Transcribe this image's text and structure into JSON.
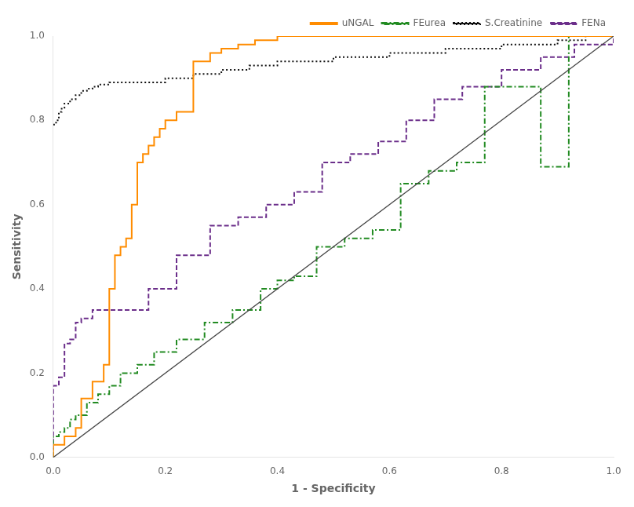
{
  "chart_data": {
    "type": "line",
    "xlabel": "1 - Specificity",
    "ylabel": "Sensitivity",
    "xlim": [
      0,
      1
    ],
    "ylim": [
      0,
      1
    ],
    "xticks": [
      {
        "value": 0,
        "label": "0.0"
      },
      0.2,
      0.4,
      0.6,
      0.8,
      {
        "value": 1,
        "label": "1.0"
      }
    ],
    "yticks": [
      {
        "value": 0,
        "label": "0.0"
      },
      0.2,
      0.4,
      0.6,
      0.8,
      {
        "value": 1,
        "label": "1.0"
      }
    ],
    "grid": false,
    "legend": "upper right",
    "series": [
      {
        "color": "#444444",
        "line_style": "solid",
        "x": [
          0.0,
          1.0
        ],
        "values": [
          0.0,
          1.0
        ]
      },
      {
        "name": "uNGAL",
        "color": "#FF8C00",
        "line_style": "solid",
        "x": [
          0.0,
          0.0,
          0.02,
          0.02,
          0.04,
          0.04,
          0.05,
          0.05,
          0.07,
          0.07,
          0.09,
          0.09,
          0.1,
          0.1,
          0.11,
          0.11,
          0.12,
          0.12,
          0.13,
          0.13,
          0.14,
          0.14,
          0.15,
          0.15,
          0.16,
          0.16,
          0.17,
          0.17,
          0.18,
          0.18,
          0.19,
          0.19,
          0.2,
          0.2,
          0.22,
          0.22,
          0.25,
          0.25,
          0.28,
          0.28,
          0.3,
          0.3,
          0.33,
          0.33,
          0.36,
          0.36,
          0.4,
          0.4,
          0.45,
          0.45,
          0.5,
          0.5,
          0.55,
          0.55,
          0.6,
          0.6,
          0.65,
          0.65,
          1.0,
          1.0
        ],
        "values": [
          0.0,
          0.03,
          0.03,
          0.05,
          0.05,
          0.07,
          0.07,
          0.14,
          0.14,
          0.18,
          0.18,
          0.22,
          0.22,
          0.4,
          0.4,
          0.48,
          0.48,
          0.5,
          0.5,
          0.52,
          0.52,
          0.6,
          0.6,
          0.7,
          0.7,
          0.72,
          0.72,
          0.74,
          0.74,
          0.76,
          0.76,
          0.78,
          0.78,
          0.8,
          0.8,
          0.82,
          0.82,
          0.94,
          0.94,
          0.96,
          0.96,
          0.97,
          0.97,
          0.98,
          0.98,
          0.99,
          0.99,
          1.0,
          1.0,
          1.0,
          1.0,
          1.0,
          1.0,
          1.0,
          1.0,
          1.0,
          1.0,
          1.0,
          1.0,
          1.0
        ]
      },
      {
        "name": "FEurea",
        "color": "#228B22",
        "line_style": "dashdot",
        "x": [
          0.0,
          0.0,
          0.01,
          0.01,
          0.02,
          0.02,
          0.03,
          0.03,
          0.04,
          0.04,
          0.06,
          0.06,
          0.08,
          0.08,
          0.1,
          0.1,
          0.12,
          0.12,
          0.15,
          0.15,
          0.18,
          0.18,
          0.22,
          0.22,
          0.27,
          0.27,
          0.32,
          0.32,
          0.37,
          0.37,
          0.4,
          0.4,
          0.43,
          0.43,
          0.47,
          0.47,
          0.52,
          0.52,
          0.57,
          0.57,
          0.62,
          0.62,
          0.67,
          0.67,
          0.72,
          0.72,
          0.77,
          0.77,
          0.82,
          0.82,
          0.87,
          0.87,
          0.92,
          0.92,
          1.0,
          1.0
        ],
        "values": [
          0.0,
          0.05,
          0.05,
          0.06,
          0.06,
          0.07,
          0.07,
          0.09,
          0.09,
          0.1,
          0.1,
          0.13,
          0.13,
          0.15,
          0.15,
          0.17,
          0.17,
          0.2,
          0.2,
          0.22,
          0.22,
          0.25,
          0.25,
          0.28,
          0.28,
          0.32,
          0.32,
          0.35,
          0.35,
          0.4,
          0.4,
          0.42,
          0.42,
          0.43,
          0.43,
          0.5,
          0.5,
          0.52,
          0.52,
          0.54,
          0.54,
          0.65,
          0.65,
          0.68,
          0.68,
          0.7,
          0.7,
          0.88,
          0.88,
          0.88,
          0.88,
          0.69,
          0.69,
          1.0,
          1.0,
          1.0
        ]
      },
      {
        "name": "S.Creatinine",
        "color": "#111111",
        "line_style": "dotted",
        "x": [
          0.0,
          0.0,
          0.005,
          0.005,
          0.01,
          0.01,
          0.015,
          0.015,
          0.02,
          0.02,
          0.03,
          0.03,
          0.04,
          0.04,
          0.05,
          0.05,
          0.06,
          0.06,
          0.07,
          0.07,
          0.08,
          0.08,
          0.1,
          0.1,
          0.12,
          0.12,
          0.15,
          0.15,
          0.18,
          0.18,
          0.2,
          0.2,
          0.25,
          0.25,
          0.3,
          0.3,
          0.35,
          0.35,
          0.4,
          0.4,
          0.5,
          0.5,
          0.6,
          0.6,
          0.7,
          0.7,
          0.8,
          0.8,
          0.9,
          0.9,
          0.95,
          0.95,
          1.0,
          1.0
        ],
        "values": [
          0.79,
          0.79,
          0.79,
          0.8,
          0.8,
          0.82,
          0.82,
          0.83,
          0.83,
          0.84,
          0.84,
          0.85,
          0.85,
          0.86,
          0.86,
          0.87,
          0.87,
          0.875,
          0.875,
          0.88,
          0.88,
          0.885,
          0.885,
          0.89,
          0.89,
          0.89,
          0.89,
          0.89,
          0.89,
          0.89,
          0.89,
          0.9,
          0.9,
          0.91,
          0.91,
          0.92,
          0.92,
          0.93,
          0.93,
          0.94,
          0.94,
          0.95,
          0.95,
          0.96,
          0.96,
          0.97,
          0.97,
          0.98,
          0.98,
          0.99,
          0.99,
          1.0,
          1.0,
          1.0
        ]
      },
      {
        "name": "FENa",
        "color": "#6B2E8A",
        "line_style": "dashed",
        "x": [
          0.0,
          0.0,
          0.01,
          0.01,
          0.02,
          0.02,
          0.03,
          0.03,
          0.04,
          0.04,
          0.05,
          0.05,
          0.07,
          0.07,
          0.1,
          0.1,
          0.13,
          0.13,
          0.17,
          0.17,
          0.22,
          0.22,
          0.28,
          0.28,
          0.33,
          0.33,
          0.38,
          0.38,
          0.43,
          0.43,
          0.48,
          0.48,
          0.53,
          0.53,
          0.58,
          0.58,
          0.63,
          0.63,
          0.68,
          0.68,
          0.73,
          0.73,
          0.8,
          0.8,
          0.87,
          0.87,
          0.93,
          0.93,
          1.0,
          1.0
        ],
        "values": [
          0.0,
          0.17,
          0.17,
          0.19,
          0.19,
          0.27,
          0.27,
          0.28,
          0.28,
          0.32,
          0.32,
          0.33,
          0.33,
          0.35,
          0.35,
          0.35,
          0.35,
          0.35,
          0.35,
          0.4,
          0.4,
          0.48,
          0.48,
          0.55,
          0.55,
          0.57,
          0.57,
          0.6,
          0.6,
          0.63,
          0.63,
          0.7,
          0.7,
          0.72,
          0.72,
          0.75,
          0.75,
          0.8,
          0.8,
          0.85,
          0.85,
          0.88,
          0.88,
          0.92,
          0.92,
          0.95,
          0.95,
          0.98,
          0.98,
          1.0
        ]
      }
    ]
  }
}
